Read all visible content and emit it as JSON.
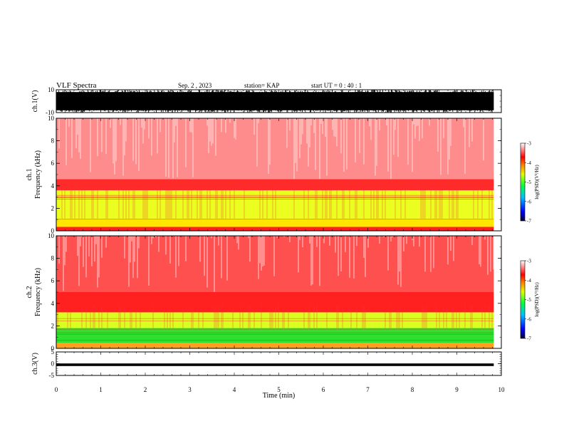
{
  "header": {
    "title": "VLF Spectra",
    "date": "Sep. 2 , 2023",
    "station": "station= KAP",
    "start": "start UT = 0 : 40 : 1"
  },
  "chart_data": [
    {
      "type": "line",
      "ylabel": "ch.1(V)",
      "ylim": [
        -10,
        10
      ],
      "yticks": [
        "10",
        "-10"
      ],
      "xlim": [
        0,
        10
      ],
      "series_color": "#000000",
      "fill_band": [
        -8,
        8
      ]
    },
    {
      "type": "heatmap",
      "ylabel_top": "ch.1",
      "ylabel": "Frequency (kHz)",
      "ylim": [
        0,
        10
      ],
      "yticks": [
        "0",
        "2",
        "4",
        "6",
        "8",
        "10"
      ],
      "xlim": [
        0,
        10
      ],
      "bands": [
        {
          "from": 0,
          "to": 0.35,
          "color": "#ff2020"
        },
        {
          "from": 0.35,
          "to": 1.1,
          "color": "#ffe600"
        },
        {
          "from": 1.1,
          "to": 3.6,
          "color": "#eaff20"
        },
        {
          "from": 3.6,
          "to": 4.6,
          "color": "#ff2a2a"
        },
        {
          "from": 4.6,
          "to": 10,
          "color": "#ff8c8c"
        }
      ],
      "colorbar": {
        "label": "log(PSD)(V²/Hz)",
        "range": [
          -7,
          -3
        ],
        "ticks": [
          "-3",
          "-4",
          "-5",
          "-6",
          "-7"
        ]
      }
    },
    {
      "type": "heatmap",
      "ylabel_top": "ch.2",
      "ylabel": "Frequency (kHz)",
      "ylim": [
        0,
        10
      ],
      "yticks": [
        "0",
        "2",
        "4",
        "6",
        "8",
        "10"
      ],
      "xlim": [
        0,
        10
      ],
      "bands": [
        {
          "from": 0,
          "to": 0.5,
          "color": "#ffa020"
        },
        {
          "from": 0.5,
          "to": 1.8,
          "color": "#30e030"
        },
        {
          "from": 1.8,
          "to": 3.2,
          "color": "#d8ff20"
        },
        {
          "from": 3.2,
          "to": 5.0,
          "color": "#ff2020"
        },
        {
          "from": 5.0,
          "to": 10,
          "color": "#ff5050"
        }
      ],
      "colorbar": {
        "label": "log(PSD)(V²/Hz)",
        "range": [
          -7,
          -3
        ],
        "ticks": [
          "-3",
          "-4",
          "-5",
          "-6",
          "-7"
        ]
      }
    },
    {
      "type": "line",
      "ylabel": "ch.3(V)",
      "ylim": [
        -5,
        5
      ],
      "yticks": [
        "5",
        "0",
        "-5"
      ],
      "xlim": [
        0,
        10
      ],
      "series_color": "#000000",
      "fill_band": [
        -1.0,
        0.1
      ]
    }
  ],
  "xaxis": {
    "label": "Time (min)",
    "ticks": [
      "0",
      "1",
      "2",
      "3",
      "4",
      "5",
      "6",
      "7",
      "8",
      "9",
      "10"
    ],
    "data_end": 9.83
  }
}
